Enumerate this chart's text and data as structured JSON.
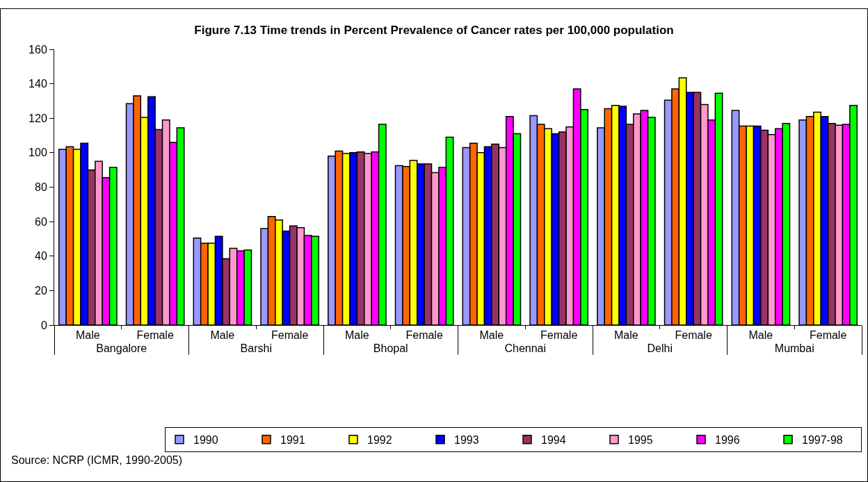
{
  "chart_data": {
    "type": "bar",
    "title": "Figure 7.13 Time trends in Percent Prevalence of Cancer rates per 100,000 population",
    "categories": [
      "Male",
      "Female",
      "Male",
      "Female",
      "Male",
      "Female",
      "Male",
      "Female",
      "Male",
      "Female",
      "Male",
      "Female"
    ],
    "annotations": [
      "Bangalore",
      "Barshi",
      "Bhopal",
      "Chennai",
      "Delhi",
      "Mumbai",
      "Source: NCRP (ICMR, 1990-2005)"
    ],
    "series": [
      {
        "name": "1990",
        "color": "#9999ff",
        "values": [
          102,
          128.5,
          50.5,
          56,
          98,
          92.5,
          103,
          121.5,
          114.5,
          130.5,
          124.5,
          119
        ]
      },
      {
        "name": "1991",
        "color": "#ff6600",
        "values": [
          103.5,
          133,
          47.5,
          63,
          101,
          92,
          105.5,
          116.5,
          125.5,
          137,
          115.5,
          121
        ]
      },
      {
        "name": "1992",
        "color": "#ffff00",
        "values": [
          102,
          120.5,
          47.5,
          61,
          99.5,
          95.5,
          100,
          114,
          127.5,
          143.5,
          115.5,
          123.5
        ]
      },
      {
        "name": "1993",
        "color": "#0000ff",
        "values": [
          105.5,
          132.5,
          51.5,
          54.5,
          100,
          93.5,
          103.5,
          111,
          127,
          135,
          115.5,
          121
        ]
      },
      {
        "name": "1994",
        "color": "#993366",
        "values": [
          90,
          113.5,
          38.5,
          57.5,
          100.5,
          93.5,
          105,
          112,
          116.5,
          135,
          113,
          117
        ]
      },
      {
        "name": "1995",
        "color": "#ff99cc",
        "values": [
          95,
          119,
          44.5,
          56.5,
          99.5,
          88.5,
          103,
          115,
          122.5,
          128,
          110.5,
          116
        ]
      },
      {
        "name": "1996",
        "color": "#ff00ff",
        "values": [
          85.5,
          106,
          43,
          52,
          100.5,
          91.5,
          121,
          137,
          124.5,
          119,
          114,
          116.5
        ]
      },
      {
        "name": "1997-98",
        "color": "#00ff00",
        "values": [
          91.5,
          114.5,
          43.5,
          51.5,
          116.5,
          109,
          111,
          125,
          120.5,
          134.5,
          117,
          127.5
        ]
      }
    ],
    "ylim": [
      0,
      160
    ],
    "yticks": [
      0,
      20,
      40,
      60,
      80,
      100,
      120,
      140,
      160
    ],
    "grid": false,
    "legend": "bottom right"
  }
}
